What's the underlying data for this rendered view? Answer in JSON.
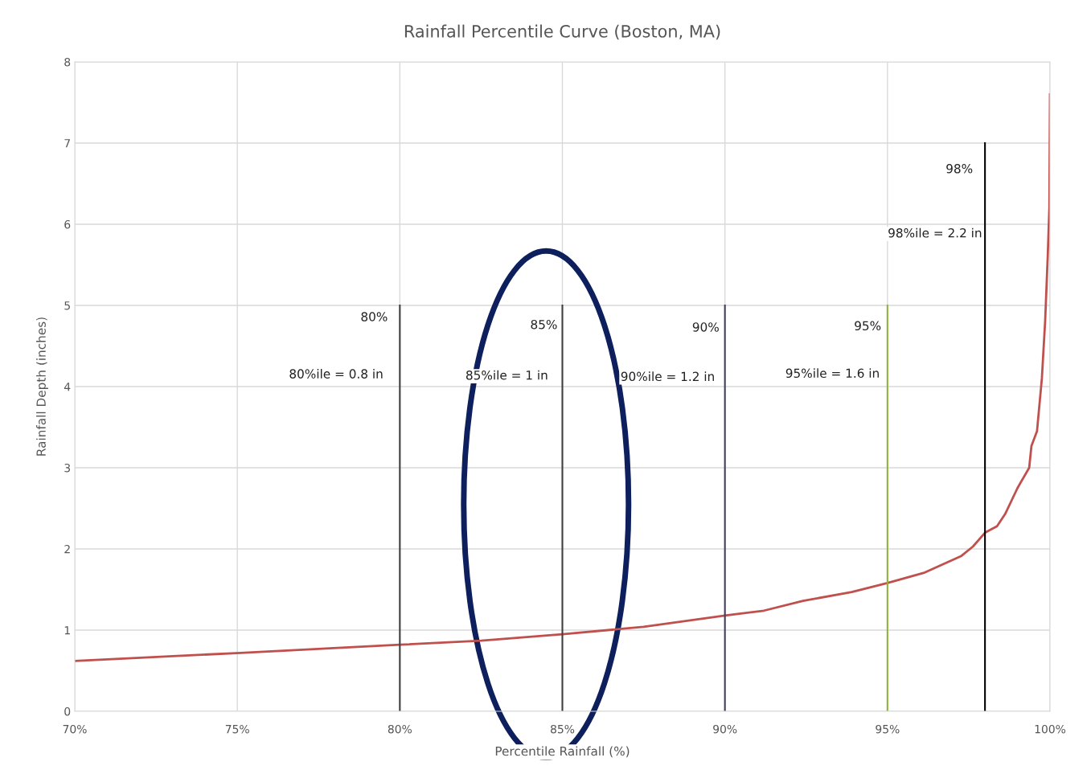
{
  "chart_data": {
    "type": "line",
    "title": "Rainfall Percentile Curve (Boston, MA)",
    "xlabel": "Percentile Rainfall (%)",
    "ylabel": "Rainfall Depth (inches)",
    "series": [
      {
        "color": "#c0504d",
        "x": [
          70,
          75.1,
          80,
          82.5,
          85,
          87.5,
          90,
          91.2,
          92.4,
          93.9,
          95,
          96.15,
          97.26,
          97.63,
          98,
          98.37,
          98.62,
          99,
          99.36,
          99.43,
          99.6,
          99.75,
          99.85,
          99.93,
          99.98,
          100
        ],
        "values": [
          0.62,
          0.72,
          0.82,
          0.87,
          0.95,
          1.04,
          1.18,
          1.24,
          1.36,
          1.47,
          1.58,
          1.71,
          1.91,
          2.03,
          2.2,
          2.28,
          2.43,
          2.75,
          3.0,
          3.27,
          3.45,
          4.1,
          4.8,
          5.6,
          6.2,
          7.6
        ]
      },
      {
        "color": "#404040",
        "x": [
          80,
          80
        ],
        "values": [
          0,
          5
        ]
      },
      {
        "color": "#404040",
        "x": [
          85,
          85
        ],
        "values": [
          0,
          5
        ]
      },
      {
        "color": "#3f3f5f",
        "x": [
          90,
          90
        ],
        "values": [
          0,
          5
        ]
      },
      {
        "color": "#8db33a",
        "x": [
          95,
          95
        ],
        "values": [
          0,
          5
        ]
      },
      {
        "color": "#000000",
        "x": [
          98,
          98
        ],
        "values": [
          0,
          7
        ]
      }
    ],
    "annotations": [
      "80%",
      "80%ile = 0.8 in",
      "85%",
      "85%ile = 1 in",
      "90%",
      "90%ile = 1.2 in",
      "95%",
      "95%ile = 1.6 in",
      "98%",
      "98%ile = 2.2 in"
    ],
    "xlim": [
      70,
      100
    ],
    "ylim": [
      0,
      8
    ],
    "xticks": [
      {
        "value": 70,
        "label": "70%"
      },
      {
        "value": 75,
        "label": "75%"
      },
      {
        "value": 80,
        "label": "80%"
      },
      {
        "value": 85,
        "label": "85%"
      },
      {
        "value": 90,
        "label": "90%"
      },
      {
        "value": 95,
        "label": "95%"
      },
      {
        "value": 100,
        "label": "100%"
      }
    ],
    "yticks": [
      0,
      1,
      2,
      3,
      4,
      5,
      6,
      7,
      8
    ],
    "grid": true,
    "legend": false,
    "marker": "none",
    "line_style": "solid"
  }
}
